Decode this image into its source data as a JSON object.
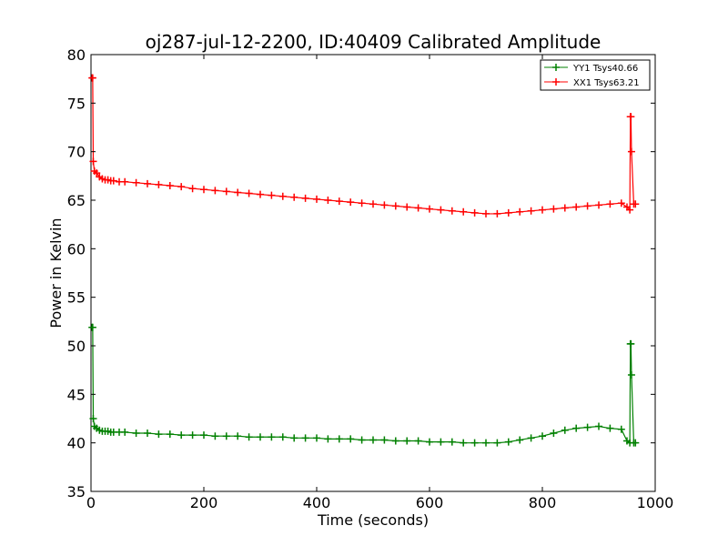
{
  "chart_data": {
    "type": "line",
    "title": "oj287-jul-12-2200, ID:40409 Calibrated Amplitude",
    "xlabel": "Time (seconds)",
    "ylabel": "Power in Kelvin",
    "xlim": [
      0,
      1000
    ],
    "ylim": [
      35,
      80
    ],
    "xticks": [
      0,
      200,
      400,
      600,
      800,
      1000
    ],
    "yticks": [
      35,
      40,
      45,
      50,
      55,
      60,
      65,
      70,
      75,
      80
    ],
    "xtick_labels": [
      "0",
      "200",
      "400",
      "600",
      "800",
      "1000"
    ],
    "ytick_labels": [
      "35",
      "40",
      "45",
      "50",
      "55",
      "60",
      "65",
      "70",
      "75",
      "80"
    ],
    "grid": false,
    "legend_position": "top-right",
    "marker": "plus",
    "series": [
      {
        "name": "YY1 Tsys40.66",
        "color": "#008000",
        "x": [
          2,
          3,
          4,
          6,
          10,
          15,
          20,
          25,
          30,
          35,
          40,
          50,
          60,
          80,
          100,
          120,
          140,
          160,
          180,
          200,
          220,
          240,
          260,
          280,
          300,
          320,
          340,
          360,
          380,
          400,
          420,
          440,
          460,
          480,
          500,
          520,
          540,
          560,
          580,
          600,
          620,
          640,
          660,
          680,
          700,
          720,
          740,
          760,
          780,
          800,
          820,
          840,
          860,
          880,
          900,
          920,
          940,
          950,
          955,
          956,
          957,
          958,
          962,
          965
        ],
        "y": [
          51.9,
          51.9,
          42.5,
          41.7,
          41.5,
          41.3,
          41.2,
          41.2,
          41.2,
          41.1,
          41.1,
          41.1,
          41.1,
          41.0,
          41.0,
          40.9,
          40.9,
          40.8,
          40.8,
          40.8,
          40.7,
          40.7,
          40.7,
          40.6,
          40.6,
          40.6,
          40.6,
          40.5,
          40.5,
          40.5,
          40.4,
          40.4,
          40.4,
          40.3,
          40.3,
          40.3,
          40.2,
          40.2,
          40.2,
          40.1,
          40.1,
          40.1,
          40.0,
          40.0,
          40.0,
          40.0,
          40.1,
          40.3,
          40.5,
          40.7,
          41.0,
          41.3,
          41.5,
          41.6,
          41.7,
          41.5,
          41.4,
          40.2,
          40.0,
          50.2,
          50.2,
          47.0,
          40.0,
          40.0
        ]
      },
      {
        "name": "XX1 Tsys63.21",
        "color": "#ff0000",
        "x": [
          2,
          3,
          4,
          6,
          10,
          15,
          20,
          25,
          30,
          35,
          40,
          50,
          60,
          80,
          100,
          120,
          140,
          160,
          180,
          200,
          220,
          240,
          260,
          280,
          300,
          320,
          340,
          360,
          380,
          400,
          420,
          440,
          460,
          480,
          500,
          520,
          540,
          560,
          580,
          600,
          620,
          640,
          660,
          680,
          700,
          720,
          740,
          760,
          780,
          800,
          820,
          840,
          860,
          880,
          900,
          920,
          940,
          950,
          955,
          956,
          957,
          958,
          962,
          965
        ],
        "y": [
          77.6,
          77.6,
          69.0,
          68.0,
          67.8,
          67.4,
          67.2,
          67.1,
          67.1,
          67.0,
          67.0,
          66.9,
          66.9,
          66.8,
          66.7,
          66.6,
          66.5,
          66.4,
          66.2,
          66.1,
          66.0,
          65.9,
          65.8,
          65.7,
          65.6,
          65.5,
          65.4,
          65.3,
          65.2,
          65.1,
          65.0,
          64.9,
          64.8,
          64.7,
          64.6,
          64.5,
          64.4,
          64.3,
          64.2,
          64.1,
          64.0,
          63.9,
          63.8,
          63.7,
          63.6,
          63.6,
          63.7,
          63.8,
          63.9,
          64.0,
          64.1,
          64.2,
          64.3,
          64.4,
          64.5,
          64.6,
          64.7,
          64.3,
          64.0,
          73.6,
          73.6,
          70.0,
          64.6,
          64.6
        ]
      }
    ]
  }
}
